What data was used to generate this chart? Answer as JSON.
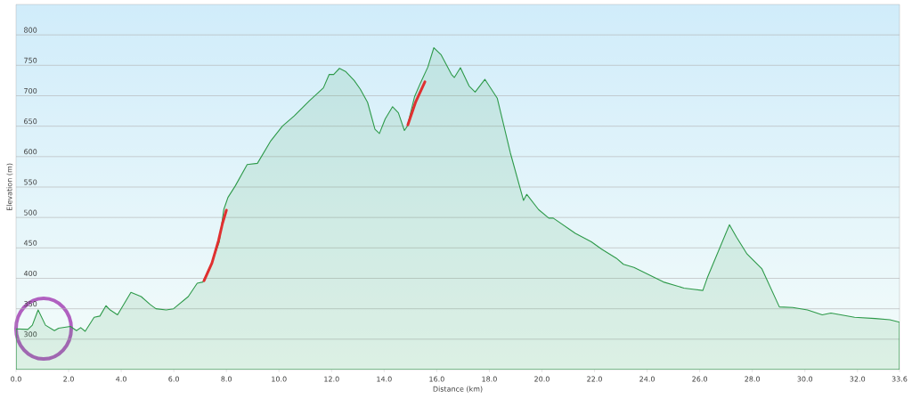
{
  "chart_data": {
    "type": "area",
    "xlabel": "Distance  (km)",
    "ylabel": "Elevation (m)",
    "xlim": [
      0,
      33.6
    ],
    "ylim": [
      250,
      850
    ],
    "xticks": [
      {
        "value": 0,
        "label": "0.0"
      },
      {
        "value": 2,
        "label": "2.0"
      },
      {
        "value": 4,
        "label": "4.0"
      },
      {
        "value": 6,
        "label": "6.0"
      },
      {
        "value": 8,
        "label": "8.0"
      },
      {
        "value": 10,
        "label": "10.0"
      },
      {
        "value": 12,
        "label": "12.0"
      },
      {
        "value": 14,
        "label": "14.0"
      },
      {
        "value": 16,
        "label": "16.0"
      },
      {
        "value": 18,
        "label": "18.0"
      },
      {
        "value": 20,
        "label": "20.0"
      },
      {
        "value": 22,
        "label": "22.0"
      },
      {
        "value": 24,
        "label": "24.0"
      },
      {
        "value": 26,
        "label": "26.0"
      },
      {
        "value": 28,
        "label": "28.0"
      },
      {
        "value": 30,
        "label": "30.0"
      },
      {
        "value": 32,
        "label": "32.0"
      },
      {
        "value": 33.6,
        "label": "33.6"
      }
    ],
    "yticks": [
      300,
      350,
      400,
      450,
      500,
      550,
      600,
      650,
      700,
      750,
      800
    ],
    "grid": "y",
    "series": [
      {
        "color": "#2e9a4a",
        "x": [
          0,
          0.45,
          0.62,
          0.84,
          1.12,
          1.46,
          1.62,
          2.07,
          2.3,
          2.46,
          2.63,
          2.97,
          3.19,
          3.42,
          3.58,
          3.86,
          4.37,
          4.76,
          5.1,
          5.32,
          5.71,
          5.99,
          6.55,
          6.89,
          7.11,
          7.45,
          7.73,
          7.9,
          8.06,
          8.34,
          8.79,
          9.18,
          9.69,
          10.13,
          10.58,
          11.14,
          11.69,
          11.91,
          12.08,
          12.3,
          12.53,
          12.86,
          13.09,
          13.37,
          13.65,
          13.82,
          14.04,
          14.32,
          14.54,
          14.77,
          14.88,
          15.16,
          15.38,
          15.66,
          15.89,
          16.17,
          16.56,
          16.67,
          16.9,
          17.23,
          17.46,
          17.83,
          18.3,
          18.8,
          19.3,
          19.42,
          19.87,
          20.26,
          20.43,
          21.0,
          21.27,
          21.88,
          22.27,
          22.83,
          23.1,
          23.5,
          24.62,
          25.4,
          25.74,
          26.12,
          26.29,
          27.13,
          27.41,
          27.8,
          28.36,
          29.03,
          29.54,
          30.1,
          30.66,
          30.99,
          31.89,
          32.67,
          33.23,
          33.6
        ],
        "values": [
          317,
          316,
          323,
          348,
          323,
          314,
          318,
          321,
          314,
          319,
          313,
          336,
          338,
          355,
          348,
          340,
          377,
          370,
          357,
          350,
          348,
          350,
          370,
          392,
          394,
          426,
          460,
          513,
          533,
          552,
          587,
          589,
          626,
          650,
          667,
          691,
          713,
          735,
          735,
          745,
          740,
          725,
          711,
          689,
          645,
          638,
          662,
          682,
          672,
          643,
          650,
          699,
          721,
          747,
          779,
          767,
          735,
          730,
          746,
          716,
          706,
          727,
          696,
          606,
          528,
          538,
          513,
          499,
          499,
          482,
          474,
          460,
          448,
          433,
          423,
          418,
          394,
          384,
          382,
          380,
          401,
          488,
          467,
          440,
          416,
          353,
          352,
          348,
          340,
          343,
          336,
          334,
          332,
          328
        ]
      },
      {
        "type": "line",
        "color": "#e03030",
        "x": [
          7.15,
          7.45,
          7.7,
          7.85,
          8.0
        ],
        "values": [
          396,
          425,
          462,
          490,
          512
        ]
      },
      {
        "type": "line",
        "color": "#e03030",
        "x": [
          14.9,
          15.2,
          15.55
        ],
        "values": [
          652,
          690,
          723
        ]
      }
    ]
  }
}
